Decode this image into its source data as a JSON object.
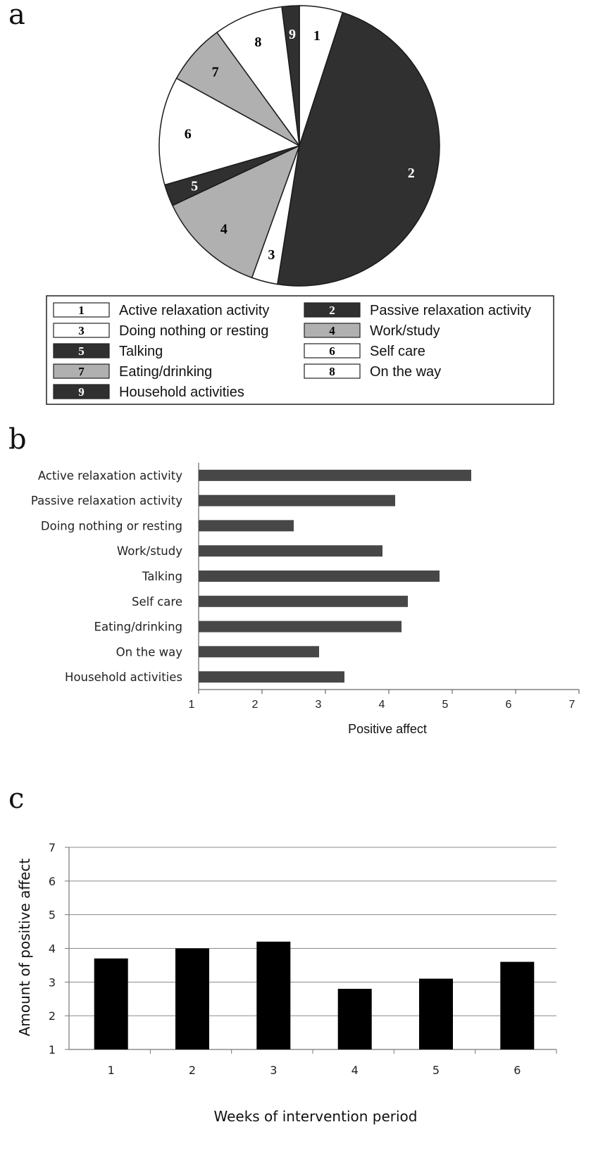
{
  "chart_data": [
    {
      "panel": "a",
      "type": "pie",
      "slices": [
        {
          "num": "1",
          "label": "Active relaxation activity",
          "value": 5.0,
          "color": "#ffffff"
        },
        {
          "num": "2",
          "label": "Passive relaxation activity",
          "value": 47.5,
          "color": "#303030"
        },
        {
          "num": "3",
          "label": "Doing nothing or resting",
          "value": 3.0,
          "color": "#ffffff"
        },
        {
          "num": "4",
          "label": "Work/study",
          "value": 12.5,
          "color": "#b0b0b0"
        },
        {
          "num": "5",
          "label": "Talking",
          "value": 2.5,
          "color": "#303030"
        },
        {
          "num": "6",
          "label": "Self care",
          "value": 12.5,
          "color": "#ffffff"
        },
        {
          "num": "7",
          "label": "Eating/drinking",
          "value": 7.0,
          "color": "#b0b0b0"
        },
        {
          "num": "8",
          "label": "On the way",
          "value": 8.0,
          "color": "#ffffff"
        },
        {
          "num": "9",
          "label": "Household activities",
          "value": 2.0,
          "color": "#303030"
        }
      ],
      "legend_placement": "bottom"
    },
    {
      "panel": "b",
      "type": "bar",
      "orientation": "horizontal",
      "categories": [
        "Active relaxation activity",
        "Passive relaxation activity",
        "Doing nothing or resting",
        "Work/study",
        "Talking",
        "Self care",
        "Eating/drinking",
        "On the way",
        "Household activities"
      ],
      "values": [
        5.3,
        4.1,
        2.5,
        3.9,
        4.8,
        4.3,
        4.2,
        2.9,
        3.3
      ],
      "xlabel": "Positive affect",
      "xlim": [
        1,
        7
      ],
      "xticks": [
        "1",
        "2",
        "3",
        "4",
        "5",
        "6",
        "7"
      ],
      "bar_color": "#474747",
      "grid": false
    },
    {
      "panel": "c",
      "type": "bar",
      "orientation": "vertical",
      "categories": [
        "1",
        "2",
        "3",
        "4",
        "5",
        "6"
      ],
      "values": [
        3.7,
        4.0,
        4.2,
        2.8,
        3.1,
        3.6
      ],
      "xlabel": "Weeks of intervention period",
      "ylabel": "Amount of positive affect",
      "ylim": [
        1,
        7
      ],
      "yticks": [
        "1",
        "2",
        "3",
        "4",
        "5",
        "6",
        "7"
      ],
      "bar_color": "#000000",
      "grid": true
    }
  ]
}
